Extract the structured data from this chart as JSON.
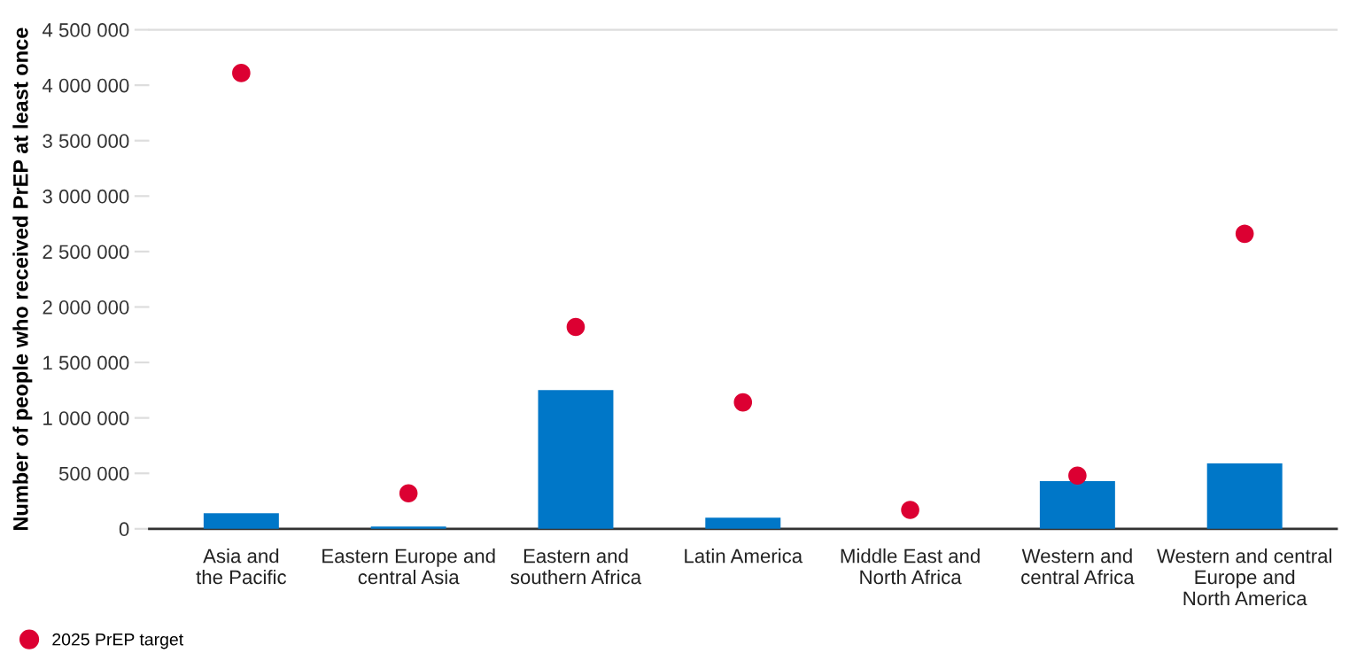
{
  "chart_data": {
    "type": "bar",
    "ylabel": "Number of people who received PrEP at least once",
    "categories": [
      "Asia and\nthe Pacific",
      "Eastern Europe and\ncentral Asia",
      "Eastern and\nsouthern Africa",
      "Latin America",
      "Middle East and\nNorth Africa",
      "Western and\ncentral Africa",
      "Western and central\nEurope and\nNorth America"
    ],
    "series": [
      {
        "color": "#0077c8",
        "values": [
          140000,
          20000,
          1250000,
          100000,
          0,
          430000,
          590000
        ]
      },
      {
        "type": "scatter",
        "name": "2025 PrEP target",
        "color": "#dc0032",
        "marker": "circle",
        "values": [
          4110000,
          320000,
          1820000,
          1140000,
          170000,
          480000,
          2660000
        ]
      }
    ],
    "ylim": [
      0,
      4500000
    ],
    "yticks": [
      {
        "value": 0,
        "label": "0"
      },
      {
        "value": 500000,
        "label": "500 000"
      },
      {
        "value": 1000000,
        "label": "1 000 000"
      },
      {
        "value": 1500000,
        "label": "1 500 000"
      },
      {
        "value": 2000000,
        "label": "2 000 000"
      },
      {
        "value": 2500000,
        "label": "2 500 000"
      },
      {
        "value": 3000000,
        "label": "3 000 000"
      },
      {
        "value": 3500000,
        "label": "3 500 000"
      },
      {
        "value": 4000000,
        "label": "4 000 000"
      },
      {
        "value": 4500000,
        "label": "4 500 000"
      }
    ],
    "grid": false,
    "legend": "bottom left"
  }
}
